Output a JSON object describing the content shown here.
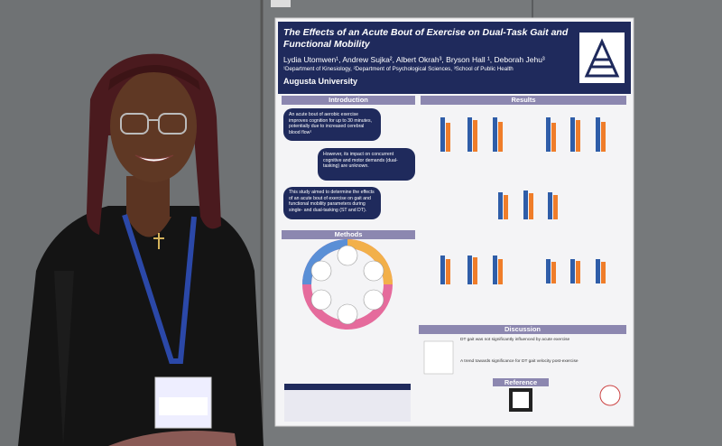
{
  "poster": {
    "title": "The Effects of an Acute Bout of Exercise on Dual-Task Gait and Functional Mobility",
    "authors": "Lydia Utomwen¹, Andrew Sujka², Albert Okrah³, Bryson Hall ¹, Deborah Jehu³",
    "affiliations": "¹Department of Kinesiology, ²Department of Psychological Sciences, ³School of Public Health",
    "institution": "Augusta University",
    "sections": {
      "introduction": "Introduction",
      "results": "Results",
      "methods": "Methods",
      "discussion": "Discussion",
      "reference": "Reference"
    },
    "introduction_bubbles": [
      "An acute bout of aerobic exercise improves cognition for up to 30 minutes, potentially due to increased cerebral blood flow¹",
      "However, its impact on concurrent cognitive and motor demands (dual-tasking) are unknown.",
      "This study aimed to determine the effects of an acute bout of exercise on gait and functional mobility parameters during single- and dual-tasking (ST and DT)."
    ],
    "discussion_points": [
      "DT gait was not significantly influenced by acute exercise",
      "A trend towards significance for DT gait velocity post-exercise"
    ]
  }
}
